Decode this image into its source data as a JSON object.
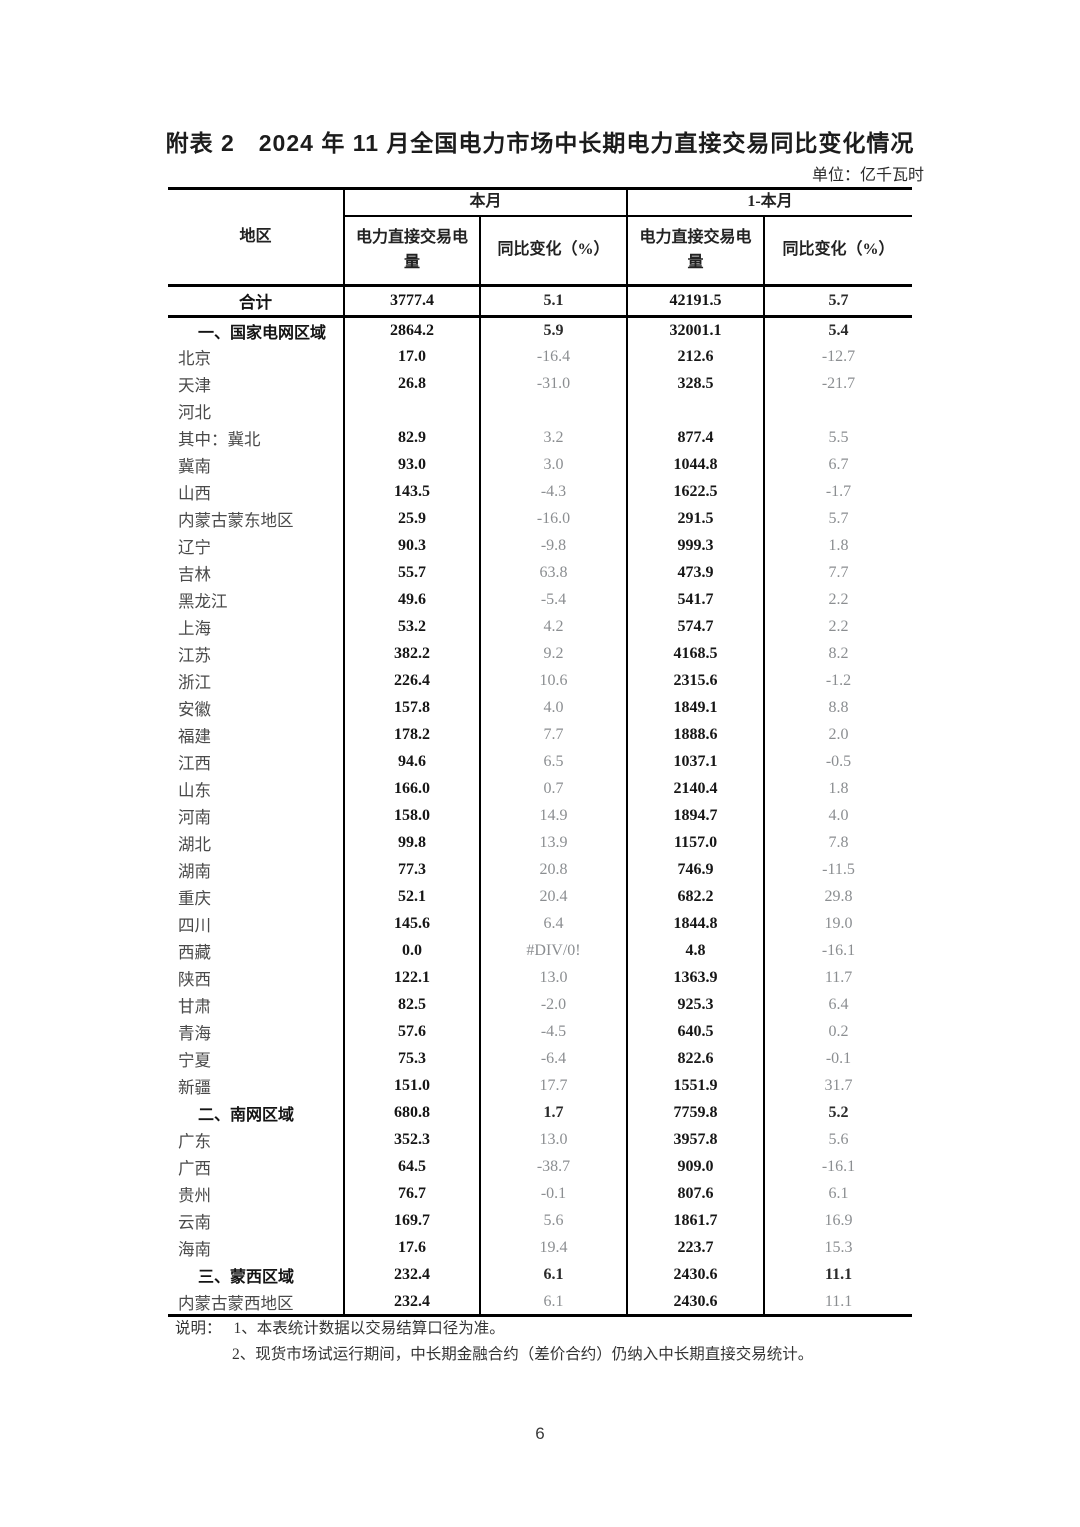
{
  "page": {
    "title": "附表 2　2024 年 11 月全国电力市场中长期电力直接交易同比变化情况",
    "unit_label": "单位：亿千瓦时",
    "page_number": "6"
  },
  "table": {
    "header": {
      "region": "地区",
      "this_month": "本月",
      "year_to_month": "1-本月",
      "volume": "电力直接交易电量",
      "yoy": "同比变化（%）"
    },
    "rows": [
      {
        "region": "合计",
        "type": "total",
        "values": [
          "3777.4",
          "5.1",
          "42191.5",
          "5.7"
        ]
      },
      {
        "region": "一、国家电网区域",
        "type": "section",
        "values": [
          "2864.2",
          "5.9",
          "32001.1",
          "5.4"
        ]
      },
      {
        "region": "北京",
        "type": "normal",
        "values": [
          "17.0",
          "-16.4",
          "212.6",
          "-12.7"
        ]
      },
      {
        "region": "天津",
        "type": "normal",
        "values": [
          "26.8",
          "-31.0",
          "328.5",
          "-21.7"
        ]
      },
      {
        "region": "河北",
        "type": "normal",
        "values": [
          "",
          "",
          "",
          ""
        ]
      },
      {
        "region": "其中：冀北",
        "type": "normal",
        "values": [
          "82.9",
          "3.2",
          "877.4",
          "5.5"
        ]
      },
      {
        "region": "冀南",
        "type": "normal",
        "values": [
          "93.0",
          "3.0",
          "1044.8",
          "6.7"
        ]
      },
      {
        "region": "山西",
        "type": "normal",
        "values": [
          "143.5",
          "-4.3",
          "1622.5",
          "-1.7"
        ]
      },
      {
        "region": "内蒙古蒙东地区",
        "type": "normal",
        "values": [
          "25.9",
          "-16.0",
          "291.5",
          "5.7"
        ]
      },
      {
        "region": "辽宁",
        "type": "normal",
        "values": [
          "90.3",
          "-9.8",
          "999.3",
          "1.8"
        ]
      },
      {
        "region": "吉林",
        "type": "normal",
        "values": [
          "55.7",
          "63.8",
          "473.9",
          "7.7"
        ]
      },
      {
        "region": "黑龙江",
        "type": "normal",
        "values": [
          "49.6",
          "-5.4",
          "541.7",
          "2.2"
        ]
      },
      {
        "region": "上海",
        "type": "normal",
        "values": [
          "53.2",
          "4.2",
          "574.7",
          "2.2"
        ]
      },
      {
        "region": "江苏",
        "type": "normal",
        "values": [
          "382.2",
          "9.2",
          "4168.5",
          "8.2"
        ]
      },
      {
        "region": "浙江",
        "type": "normal",
        "values": [
          "226.4",
          "10.6",
          "2315.6",
          "-1.2"
        ]
      },
      {
        "region": "安徽",
        "type": "normal",
        "values": [
          "157.8",
          "4.0",
          "1849.1",
          "8.8"
        ]
      },
      {
        "region": "福建",
        "type": "normal",
        "values": [
          "178.2",
          "7.7",
          "1888.6",
          "2.0"
        ]
      },
      {
        "region": "江西",
        "type": "normal",
        "values": [
          "94.6",
          "6.5",
          "1037.1",
          "-0.5"
        ]
      },
      {
        "region": "山东",
        "type": "normal",
        "values": [
          "166.0",
          "0.7",
          "2140.4",
          "1.8"
        ]
      },
      {
        "region": "河南",
        "type": "normal",
        "values": [
          "158.0",
          "14.9",
          "1894.7",
          "4.0"
        ]
      },
      {
        "region": "湖北",
        "type": "normal",
        "values": [
          "99.8",
          "13.9",
          "1157.0",
          "7.8"
        ]
      },
      {
        "region": "湖南",
        "type": "normal",
        "values": [
          "77.3",
          "20.8",
          "746.9",
          "-11.5"
        ]
      },
      {
        "region": "重庆",
        "type": "normal",
        "values": [
          "52.1",
          "20.4",
          "682.2",
          "29.8"
        ]
      },
      {
        "region": "四川",
        "type": "normal",
        "values": [
          "145.6",
          "6.4",
          "1844.8",
          "19.0"
        ]
      },
      {
        "region": "西藏",
        "type": "normal",
        "values": [
          "0.0",
          "#DIV/0!",
          "4.8",
          "-16.1"
        ]
      },
      {
        "region": "陕西",
        "type": "normal",
        "values": [
          "122.1",
          "13.0",
          "1363.9",
          "11.7"
        ]
      },
      {
        "region": "甘肃",
        "type": "normal",
        "values": [
          "82.5",
          "-2.0",
          "925.3",
          "6.4"
        ]
      },
      {
        "region": "青海",
        "type": "normal",
        "values": [
          "57.6",
          "-4.5",
          "640.5",
          "0.2"
        ]
      },
      {
        "region": "宁夏",
        "type": "normal",
        "values": [
          "75.3",
          "-6.4",
          "822.6",
          "-0.1"
        ]
      },
      {
        "region": "新疆",
        "type": "normal",
        "values": [
          "151.0",
          "17.7",
          "1551.9",
          "31.7"
        ]
      },
      {
        "region": "二、南网区域",
        "type": "section",
        "values": [
          "680.8",
          "1.7",
          "7759.8",
          "5.2"
        ]
      },
      {
        "region": "广东",
        "type": "normal",
        "values": [
          "352.3",
          "13.0",
          "3957.8",
          "5.6"
        ]
      },
      {
        "region": "广西",
        "type": "normal",
        "values": [
          "64.5",
          "-38.7",
          "909.0",
          "-16.1"
        ]
      },
      {
        "region": "贵州",
        "type": "normal",
        "values": [
          "76.7",
          "-0.1",
          "807.6",
          "6.1"
        ]
      },
      {
        "region": "云南",
        "type": "normal",
        "values": [
          "169.7",
          "5.6",
          "1861.7",
          "16.9"
        ]
      },
      {
        "region": "海南",
        "type": "normal",
        "values": [
          "17.6",
          "19.4",
          "223.7",
          "15.3"
        ]
      },
      {
        "region": "三、蒙西区域",
        "type": "section",
        "values": [
          "232.4",
          "6.1",
          "2430.6",
          "11.1"
        ]
      },
      {
        "region": "内蒙古蒙西地区",
        "type": "normal",
        "values": [
          "232.4",
          "6.1",
          "2430.6",
          "11.1"
        ]
      }
    ]
  },
  "notes": {
    "label": "说明：",
    "items": [
      "1、本表统计数据以交易结算口径为准。",
      "2、现货市场试运行期间，中长期金融合约（差价合约）仍纳入中长期直接交易统计。"
    ]
  }
}
